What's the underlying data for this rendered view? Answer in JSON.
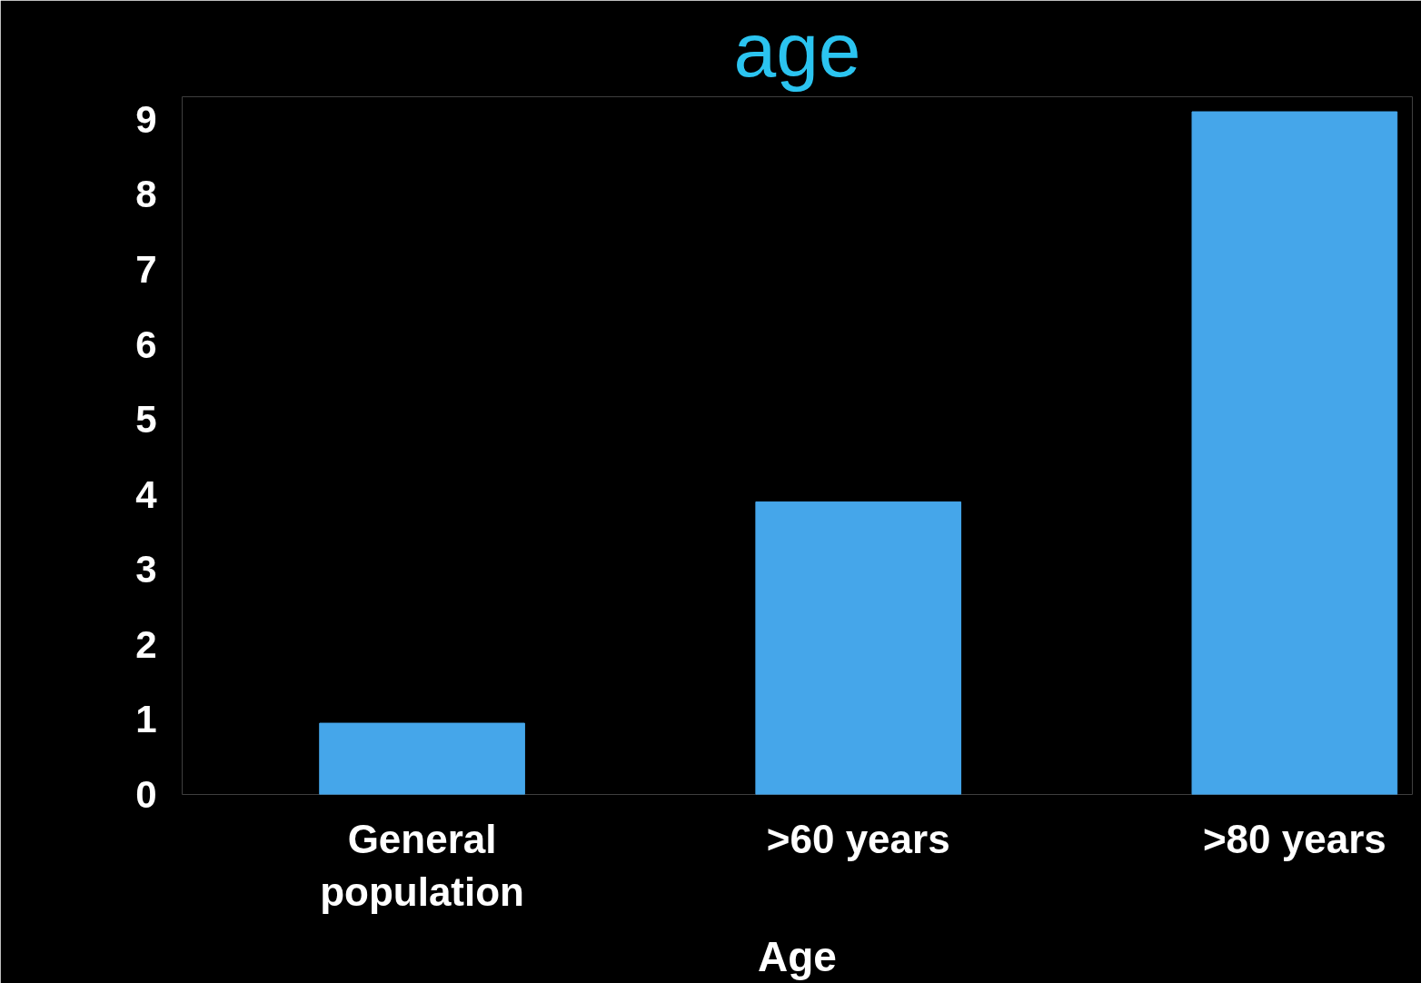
{
  "chart_data": {
    "type": "bar",
    "title": "age",
    "xlabel": "Age",
    "categories": [
      "General population",
      ">60 years",
      ">80 years"
    ],
    "values": [
      0.95,
      3.9,
      9.1
    ],
    "color": "#45a6ea",
    "ylim": [
      0,
      9.3
    ],
    "yticks": [
      0,
      1,
      2,
      3,
      4,
      5,
      6,
      7,
      8,
      9
    ],
    "grid": false
  }
}
